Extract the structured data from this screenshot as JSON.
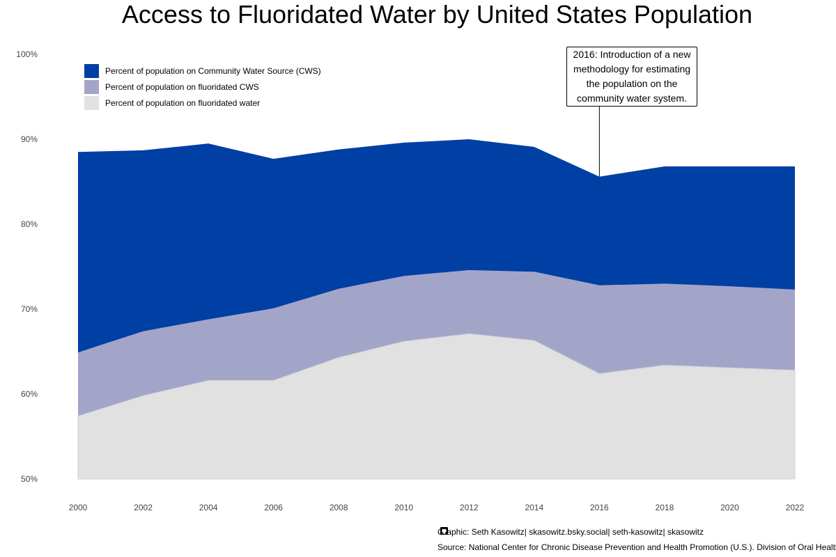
{
  "chart_data": {
    "type": "area",
    "title": "Access to Fluoridated Water by United States Population",
    "x": [
      2000,
      2002,
      2004,
      2006,
      2008,
      2010,
      2012,
      2014,
      2016,
      2018,
      2020,
      2022
    ],
    "x_ticks": [
      "2000",
      "2002",
      "2004",
      "2006",
      "2008",
      "2010",
      "2012",
      "2014",
      "2016",
      "2018",
      "2020",
      "2022"
    ],
    "y_ticks": [
      "50%",
      "60%",
      "70%",
      "80%",
      "90%",
      "100%"
    ],
    "ylim": [
      50,
      100
    ],
    "grid": false,
    "legend_position": "top-left",
    "series": [
      {
        "name": "Percent of population on Community Water Source (CWS)",
        "color": "#003fa4",
        "values": [
          88.5,
          88.7,
          89.5,
          87.7,
          88.8,
          89.6,
          90.0,
          89.1,
          85.6,
          86.8,
          86.8,
          86.8
        ]
      },
      {
        "name": "Percent of population on fluoridated CWS",
        "color": "#a3a5c8",
        "values": [
          64.9,
          67.4,
          68.8,
          70.1,
          72.4,
          73.9,
          74.6,
          74.4,
          72.8,
          73.0,
          72.7,
          72.3
        ]
      },
      {
        "name": "Percent of population on fluoridated water",
        "color": "#e1e1e1",
        "values": [
          57.4,
          59.8,
          61.6,
          61.6,
          64.3,
          66.2,
          67.1,
          66.3,
          62.4,
          63.4,
          63.1,
          62.8
        ]
      }
    ],
    "annotation": {
      "x": 2016,
      "text": "2016: Introduction of a new methodology for estimating the population on the community water system."
    }
  },
  "footer": {
    "graphic_label": "Graphic:",
    "author": "Seth Kasowitz",
    "bluesky": "skasowitz.bsky.social",
    "linkedin": "seth-kasowitz",
    "github": "skasowitz",
    "source": "Source: National Center for Chronic Disease Prevention and Health Promotion (U.S.). Division of Oral Health"
  },
  "icons": {
    "bluesky": "butterfly-icon",
    "linkedin": "linkedin-icon",
    "github": "github-icon"
  }
}
